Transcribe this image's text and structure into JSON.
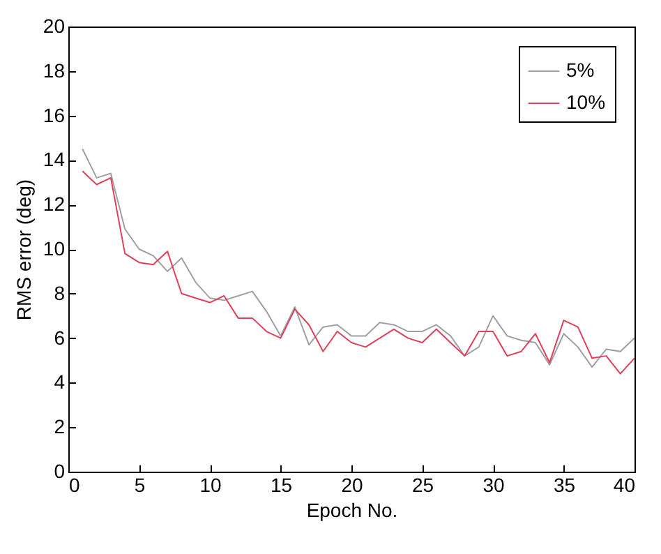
{
  "chart_data": {
    "type": "line",
    "xlabel": "Epoch No.",
    "ylabel": "RMS error (deg)",
    "x": [
      1,
      2,
      3,
      4,
      5,
      6,
      7,
      8,
      9,
      10,
      11,
      12,
      13,
      14,
      15,
      16,
      17,
      18,
      19,
      20,
      21,
      22,
      23,
      24,
      25,
      26,
      27,
      28,
      29,
      30,
      31,
      32,
      33,
      34,
      35,
      36,
      37,
      38,
      39,
      40
    ],
    "series": [
      {
        "name": "5%",
        "color": "#a0a0a0",
        "values": [
          14.5,
          13.2,
          13.4,
          10.9,
          10.0,
          9.7,
          9.0,
          9.6,
          8.5,
          7.8,
          7.7,
          7.9,
          8.1,
          7.2,
          6.1,
          7.4,
          5.7,
          6.5,
          6.6,
          6.1,
          6.1,
          6.7,
          6.6,
          6.3,
          6.3,
          6.6,
          6.1,
          5.2,
          5.6,
          7.0,
          6.1,
          5.9,
          5.8,
          4.8,
          6.2,
          5.6,
          4.7,
          5.5,
          5.4,
          6.0
        ]
      },
      {
        "name": "10%",
        "color": "#e0405a",
        "values": [
          13.5,
          12.9,
          13.2,
          9.8,
          9.4,
          9.3,
          9.9,
          8.0,
          7.8,
          7.6,
          7.9,
          6.9,
          6.9,
          6.3,
          6.0,
          7.3,
          6.6,
          5.4,
          6.3,
          5.8,
          5.6,
          6.0,
          6.4,
          6.0,
          5.8,
          6.4,
          5.8,
          5.2,
          6.3,
          6.3,
          5.2,
          5.4,
          6.2,
          4.9,
          6.8,
          6.5,
          5.1,
          5.2,
          4.4,
          5.1
        ]
      }
    ],
    "xlim": [
      0,
      40
    ],
    "xticks": [
      0,
      5,
      10,
      15,
      20,
      25,
      30,
      35,
      40
    ],
    "ylim": [
      0,
      20
    ],
    "yticks": [
      0,
      2,
      4,
      6,
      8,
      10,
      12,
      14,
      16,
      18,
      20
    ],
    "legend": "top right",
    "grid": false,
    "line_style": "solid",
    "marker": "none"
  }
}
